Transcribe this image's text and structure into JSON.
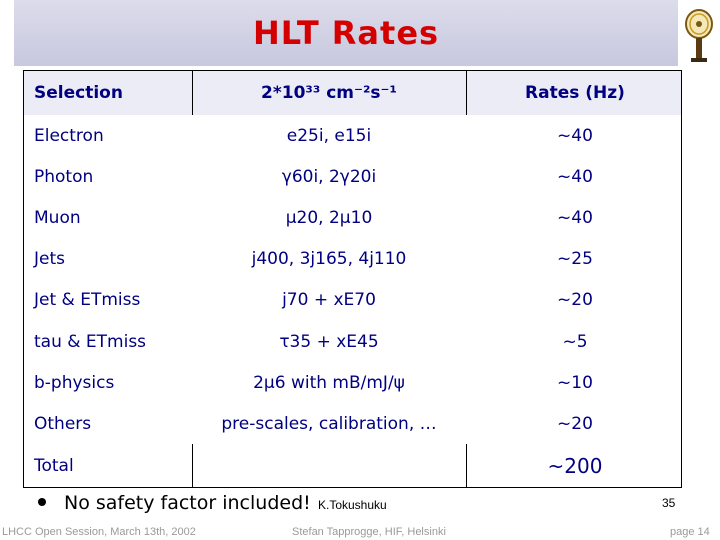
{
  "title": "HLT Rates",
  "table": {
    "header": {
      "selection": "Selection",
      "luminosity": "2*10³³ cm⁻²s⁻¹",
      "rates": "Rates (Hz)"
    },
    "rows": [
      {
        "selection": "Electron",
        "thresholds": "e25i, e15i",
        "rate": "~40"
      },
      {
        "selection": "Photon",
        "thresholds": "γ60i, 2γ20i",
        "rate": "~40"
      },
      {
        "selection": "Muon",
        "thresholds": "μ20, 2μ10",
        "rate": "~40"
      },
      {
        "selection": "Jets",
        "thresholds": "j400, 3j165, 4j110",
        "rate": "~25"
      },
      {
        "selection": "Jet & ETmiss",
        "thresholds": "j70 + xE70",
        "rate": "~20"
      },
      {
        "selection": "tau & ETmiss",
        "thresholds": "τ35 + xE45",
        "rate": "~5"
      },
      {
        "selection": "b-physics",
        "thresholds": "2μ6 with mB/mJ/ψ",
        "rate": "~10"
      },
      {
        "selection": "Others",
        "thresholds": "pre-scales, calibration, …",
        "rate": "~20"
      }
    ],
    "total": {
      "selection": "Total",
      "rate": "~200"
    }
  },
  "note": "No safety factor included!",
  "author": "K.Tokushuku",
  "page_number": "35",
  "footer": {
    "left": "LHCC Open Session, March 13th, 2002",
    "center": "Stefan Tapprogge, HIF, Helsinki",
    "right": "page 14"
  },
  "colors": {
    "title": "#d40000",
    "table_text": "#000080",
    "header_bg": "#ececf6",
    "title_bar_bg": "#d0d0e4"
  }
}
